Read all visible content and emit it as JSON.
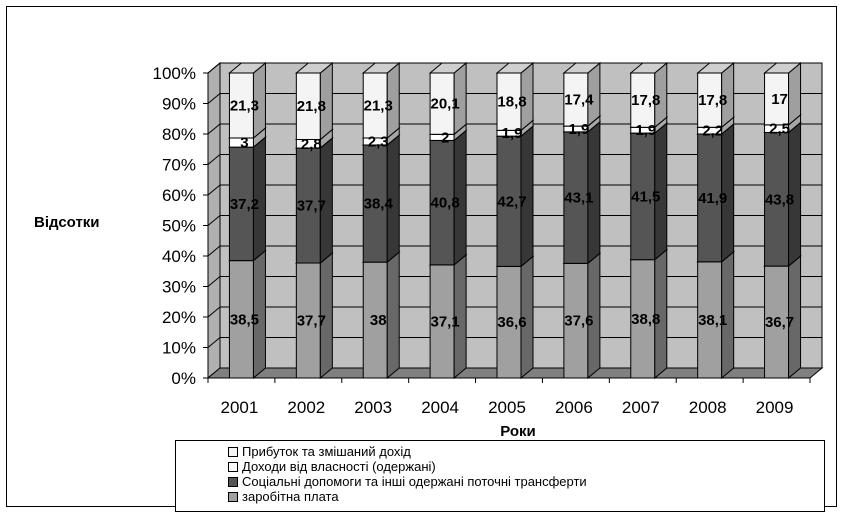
{
  "chart_data": {
    "type": "bar",
    "stacked": true,
    "percent_stacked": true,
    "three_d": true,
    "xlabel": "Роки",
    "ylabel": "Відсотки",
    "categories": [
      "2001",
      "2002",
      "2003",
      "2004",
      "2005",
      "2006",
      "2007",
      "2008",
      "2009"
    ],
    "y_ticks": [
      "0%",
      "10%",
      "20%",
      "30%",
      "40%",
      "50%",
      "60%",
      "70%",
      "80%",
      "90%",
      "100%"
    ],
    "ylim": [
      0,
      100
    ],
    "grid": true,
    "legend_position": "bottom",
    "series": [
      {
        "name": "заробітна плата",
        "color": "#a0a0a0",
        "values": [
          38.5,
          37.7,
          38,
          37.1,
          36.6,
          37.6,
          38.8,
          38.1,
          36.7
        ],
        "labels": [
          "38,5",
          "37,7",
          "38",
          "37,1",
          "36,6",
          "37,6",
          "38,8",
          "38,1",
          "36,7"
        ]
      },
      {
        "name": "Соціальні допомоги та інші одержані поточні трансферти",
        "color": "#555555",
        "values": [
          37.2,
          37.7,
          38.4,
          40.8,
          42.7,
          43.1,
          41.5,
          41.9,
          43.8
        ],
        "labels": [
          "37,2",
          "37,7",
          "38,4",
          "40,8",
          "42,7",
          "43,1",
          "41,5",
          "41,9",
          "43,8"
        ]
      },
      {
        "name": "Доходи від власності (одержані)",
        "color": "#ffffff",
        "values": [
          3,
          2.8,
          2.3,
          2,
          1.9,
          1.9,
          1.9,
          2.2,
          2.5
        ],
        "labels": [
          "3",
          "2,8",
          "2,3",
          "2",
          "1,9",
          "1,9",
          "1,9",
          "2,2",
          "2,5"
        ]
      },
      {
        "name": "Прибуток та змішаний дохід",
        "color": "#f4f4f4",
        "values": [
          21.3,
          21.8,
          21.3,
          20.1,
          18.8,
          17.4,
          17.8,
          17.8,
          17
        ],
        "labels": [
          "21,3",
          "21,8",
          "21,3",
          "20,1",
          "18,8",
          "17,4",
          "17,8",
          "17,8",
          "17"
        ]
      }
    ],
    "legend_order": [
      3,
      2,
      1,
      0
    ]
  }
}
